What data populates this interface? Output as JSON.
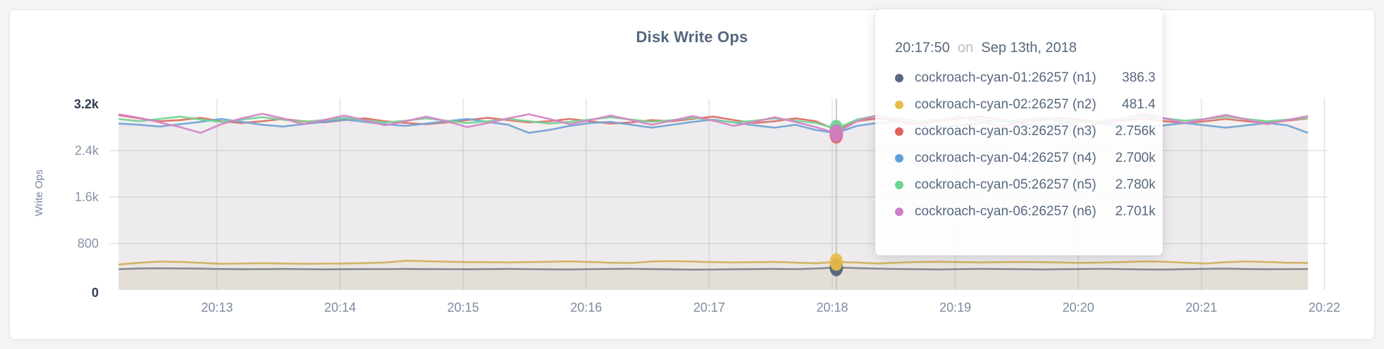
{
  "card": {
    "title": "Disk Write Ops"
  },
  "axes": {
    "y_label": "Write Ops",
    "y_ticks": [
      {
        "label": "0",
        "value": 0,
        "emphasis": true
      },
      {
        "label": "800",
        "value": 800,
        "emphasis": false
      },
      {
        "label": "1.6k",
        "value": 1600,
        "emphasis": false
      },
      {
        "label": "2.4k",
        "value": 2400,
        "emphasis": false
      },
      {
        "label": "3.2k",
        "value": 3200,
        "emphasis": true
      }
    ],
    "x_ticks": [
      "20:13",
      "20:14",
      "20:15",
      "20:16",
      "20:17",
      "20:18",
      "20:19",
      "20:20",
      "20:21",
      "20:22"
    ]
  },
  "tooltip": {
    "time": "20:17:50",
    "connector": "on",
    "date": "Sep 13th, 2018",
    "rows": [
      {
        "label": "cockroach-cyan-01:26257 (n1)",
        "value": "386.3",
        "color": "#57687f"
      },
      {
        "label": "cockroach-cyan-02:26257 (n2)",
        "value": "481.4",
        "color": "#e8bc45"
      },
      {
        "label": "cockroach-cyan-03:26257 (n3)",
        "value": "2.756k",
        "color": "#e06158"
      },
      {
        "label": "cockroach-cyan-04:26257 (n4)",
        "value": "2.700k",
        "color": "#60a0d8"
      },
      {
        "label": "cockroach-cyan-05:26257 (n5)",
        "value": "2.780k",
        "color": "#6cd48e"
      },
      {
        "label": "cockroach-cyan-06:26257 (n6)",
        "value": "2.701k",
        "color": "#ce7fc5"
      }
    ]
  },
  "chart_data": {
    "type": "line",
    "title": "Disk Write Ops",
    "xlabel": "",
    "ylabel": "Write Ops",
    "ylim": [
      0,
      3200
    ],
    "grid": true,
    "legend_position": "tooltip",
    "x_tick_labels": [
      "20:13",
      "20:14",
      "20:15",
      "20:16",
      "20:17",
      "20:18",
      "20:19",
      "20:20",
      "20:21",
      "20:22"
    ],
    "point_interval_seconds": 10,
    "hover": {
      "time": "20:17:50",
      "date": "Sep 13th, 2018",
      "point_index": 35,
      "values": {
        "n1": 386.3,
        "n2": 481.4,
        "n3": 2756,
        "n4": 2700,
        "n5": 2780,
        "n6": 2701
      }
    },
    "series": [
      {
        "name": "cockroach-cyan-01:26257 (n1)",
        "node": "n1",
        "line_color": "#6e7b92",
        "dot_color": "#4d5e78",
        "values": [
          358,
          368,
          372,
          370,
          366,
          360,
          356,
          358,
          361,
          357,
          354,
          356,
          359,
          357,
          361,
          359,
          357,
          355,
          359,
          361,
          357,
          354,
          351,
          357,
          361,
          364,
          359,
          354,
          349,
          351,
          355,
          359,
          361,
          357,
          367,
          386.3,
          374,
          366,
          360,
          356,
          353,
          358,
          363,
          360,
          356,
          353,
          356,
          360,
          364,
          358,
          353,
          350,
          356,
          362,
          366,
          360,
          356,
          358,
          360
        ]
      },
      {
        "name": "cockroach-cyan-02:26257 (n2)",
        "node": "n2",
        "line_color": "#ddb851",
        "dot_color": "#e8bc45",
        "values": [
          437,
          468,
          488,
          483,
          468,
          450,
          455,
          462,
          456,
          450,
          452,
          456,
          462,
          472,
          502,
          495,
          486,
          480,
          477,
          474,
          480,
          486,
          492,
          481,
          469,
          464,
          490,
          496,
          488,
          479,
          474,
          478,
          483,
          470,
          459,
          481.4,
          471,
          456,
          470,
          481,
          486,
          480,
          474,
          478,
          483,
          478,
          471,
          466,
          471,
          481,
          491,
          486,
          469,
          454,
          477,
          491,
          481,
          469,
          466
        ]
      },
      {
        "name": "cockroach-cyan-03:26257 (n3)",
        "node": "n3",
        "line_color": "#de6e64",
        "dot_color": "#e06158",
        "values": [
          3010,
          2955,
          2905,
          2925,
          2965,
          2905,
          2875,
          2905,
          2945,
          2905,
          2885,
          2925,
          2955,
          2905,
          2875,
          2855,
          2885,
          2925,
          2965,
          2925,
          2885,
          2905,
          2945,
          2905,
          2865,
          2885,
          2925,
          2905,
          2945,
          2985,
          2925,
          2875,
          2905,
          2955,
          2905,
          2756,
          2905,
          2955,
          2905,
          2865,
          2905,
          2945,
          2985,
          2935,
          2895,
          2925,
          2965,
          2925,
          2885,
          2915,
          2955,
          2905,
          2875,
          2905,
          2945,
          2905,
          2875,
          2915,
          2955
        ]
      },
      {
        "name": "cockroach-cyan-04:26257 (n4)",
        "node": "n4",
        "line_color": "#6fa3d8",
        "dot_color": "#60a0d8",
        "values": [
          2865,
          2845,
          2815,
          2855,
          2895,
          2945,
          2895,
          2845,
          2815,
          2855,
          2895,
          2935,
          2895,
          2855,
          2825,
          2865,
          2905,
          2945,
          2895,
          2845,
          2705,
          2755,
          2825,
          2875,
          2895,
          2845,
          2795,
          2845,
          2895,
          2935,
          2885,
          2835,
          2795,
          2845,
          2755,
          2700,
          2825,
          2875,
          2895,
          2845,
          2795,
          2835,
          2875,
          2915,
          2865,
          2825,
          2865,
          2905,
          2865,
          2825,
          2795,
          2835,
          2875,
          2835,
          2795,
          2835,
          2875,
          2835,
          2705
        ]
      },
      {
        "name": "cockroach-cyan-05:26257 (n5)",
        "node": "n5",
        "line_color": "#74d494",
        "dot_color": "#6cd48e",
        "values": [
          2945,
          2905,
          2945,
          2985,
          2935,
          2895,
          2935,
          2975,
          2935,
          2895,
          2925,
          2965,
          2925,
          2885,
          2915,
          2955,
          2915,
          2875,
          2905,
          2945,
          2905,
          2865,
          2895,
          2935,
          2975,
          2935,
          2895,
          2925,
          2965,
          2925,
          2885,
          2915,
          2955,
          2915,
          2875,
          2780,
          2935,
          3005,
          2955,
          2905,
          2935,
          2975,
          2935,
          2895,
          2925,
          2965,
          2925,
          2885,
          2915,
          2955,
          2995,
          2955,
          2915,
          2945,
          2985,
          2945,
          2905,
          2935,
          2965
        ]
      },
      {
        "name": "cockroach-cyan-06:26257 (n6)",
        "node": "n6",
        "line_color": "#d685c7",
        "dot_color": "#ce7fc5",
        "values": [
          3025,
          2965,
          2885,
          2805,
          2705,
          2855,
          2955,
          3035,
          2955,
          2855,
          2925,
          3005,
          2925,
          2835,
          2905,
          2985,
          2905,
          2805,
          2875,
          2955,
          3025,
          2945,
          2855,
          2925,
          3005,
          2925,
          2845,
          2915,
          2995,
          2915,
          2825,
          2895,
          2975,
          2895,
          2805,
          2701,
          2905,
          3005,
          2925,
          2835,
          2905,
          2985,
          2905,
          2815,
          2885,
          2965,
          2885,
          2805,
          2875,
          2955,
          3035,
          2955,
          2875,
          2945,
          3015,
          2935,
          2855,
          2925,
          2995
        ]
      }
    ]
  }
}
